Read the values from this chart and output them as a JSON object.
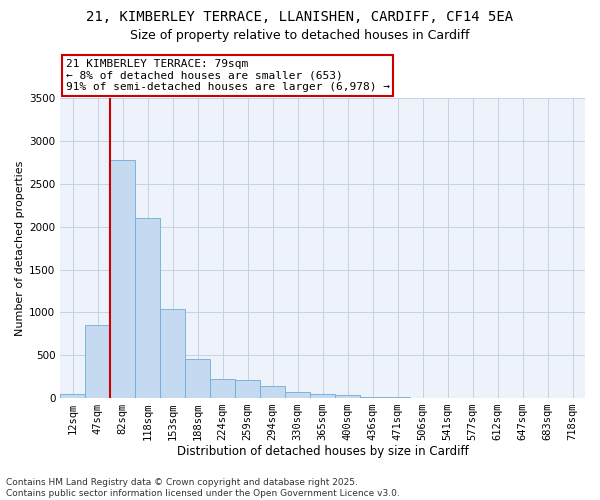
{
  "title1": "21, KIMBERLEY TERRACE, LLANISHEN, CARDIFF, CF14 5EA",
  "title2": "Size of property relative to detached houses in Cardiff",
  "xlabel": "Distribution of detached houses by size in Cardiff",
  "ylabel": "Number of detached properties",
  "categories": [
    "12sqm",
    "47sqm",
    "82sqm",
    "118sqm",
    "153sqm",
    "188sqm",
    "224sqm",
    "259sqm",
    "294sqm",
    "330sqm",
    "365sqm",
    "400sqm",
    "436sqm",
    "471sqm",
    "506sqm",
    "541sqm",
    "577sqm",
    "612sqm",
    "647sqm",
    "683sqm",
    "718sqm"
  ],
  "values": [
    50,
    850,
    2780,
    2100,
    1040,
    460,
    220,
    210,
    135,
    70,
    50,
    30,
    15,
    8,
    4,
    2,
    2,
    1,
    1,
    1,
    1
  ],
  "bar_color": "#c5d9f0",
  "bar_edge_color": "#6baed6",
  "vline_x_index": 2,
  "vline_color": "#cc0000",
  "annotation_text": "21 KIMBERLEY TERRACE: 79sqm\n← 8% of detached houses are smaller (653)\n91% of semi-detached houses are larger (6,978) →",
  "annotation_box_facecolor": "white",
  "annotation_box_edgecolor": "#cc0000",
  "bg_color": "#eef2fa",
  "ylim": [
    0,
    3500
  ],
  "yticks": [
    0,
    500,
    1000,
    1500,
    2000,
    2500,
    3000,
    3500
  ],
  "grid_color": "#c0cce0",
  "footnote": "Contains HM Land Registry data © Crown copyright and database right 2025.\nContains public sector information licensed under the Open Government Licence v3.0.",
  "title1_fontsize": 10,
  "title2_fontsize": 9,
  "xlabel_fontsize": 8.5,
  "ylabel_fontsize": 8,
  "tick_fontsize": 7.5,
  "annotation_fontsize": 8,
  "footnote_fontsize": 6.5
}
